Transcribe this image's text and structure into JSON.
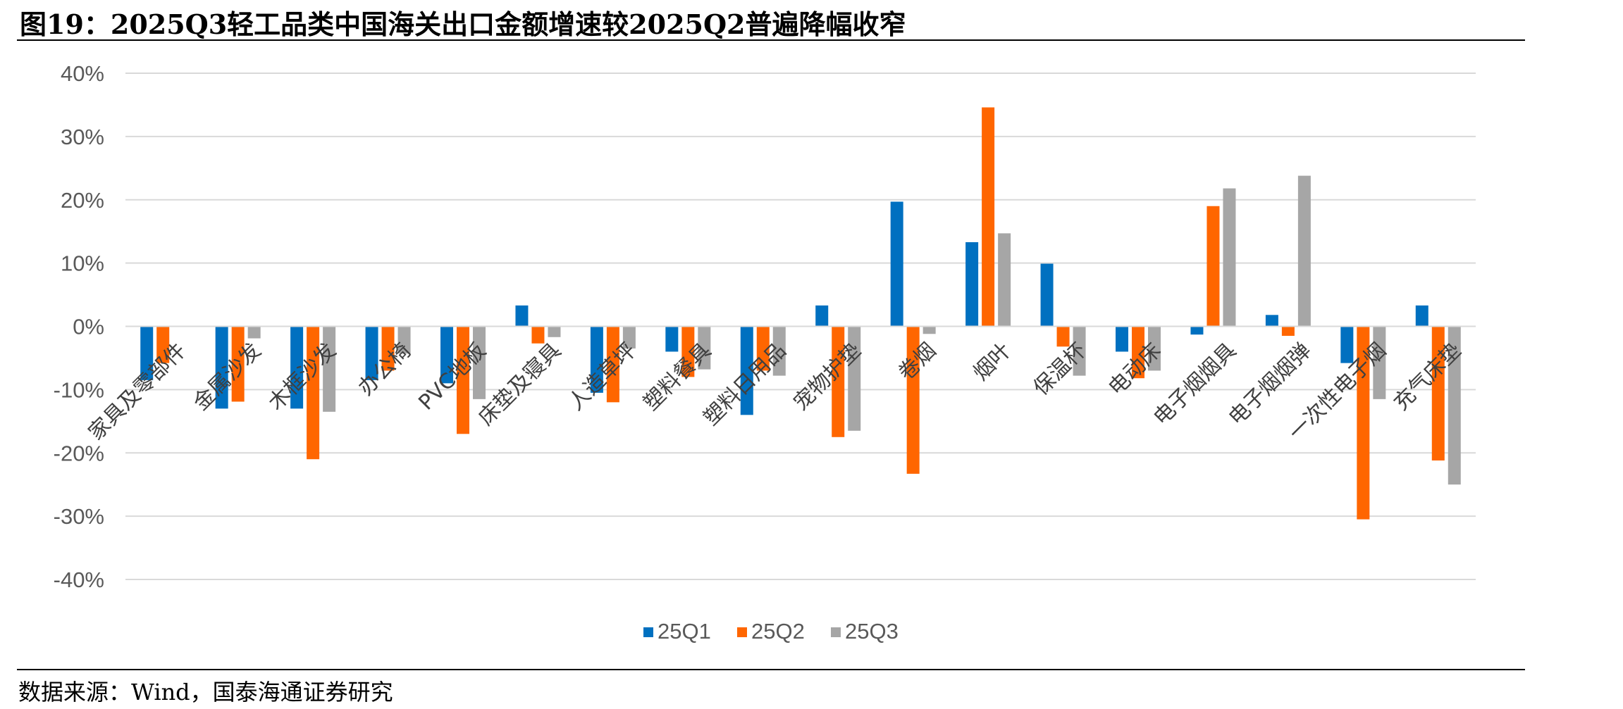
{
  "title": "图19：2025Q3轻工品类中国海关出口金额增速较2025Q2普遍降幅收窄",
  "source": "数据来源：Wind，国泰海通证券研究",
  "colors": {
    "25Q1": "#0070C0",
    "25Q2": "#FF6600",
    "25Q3": "#A6A6A6",
    "grid": "#D9D9D9"
  },
  "chart_data": {
    "type": "bar",
    "title": "图19：2025Q3轻工品类中国海关出口金额增速较2025Q2普遍降幅收窄",
    "xlabel": "",
    "ylabel": "",
    "ylim": [
      -40,
      40
    ],
    "yticks": [
      "40%",
      "30%",
      "20%",
      "10%",
      "0%",
      "-10%",
      "-20%",
      "-30%",
      "-40%"
    ],
    "yticks_values": [
      40,
      30,
      20,
      10,
      0,
      -10,
      -20,
      -30,
      -40
    ],
    "grid": true,
    "legend": "bottom",
    "categories": [
      "家具及零部件",
      "金属沙发",
      "木框沙发",
      "办公椅",
      "PVC地板",
      "床垫及寝具",
      "人造草坪",
      "塑料餐具",
      "塑料日用品",
      "宠物护垫",
      "卷烟",
      "烟叶",
      "保温杯",
      "电动床",
      "电子烟烟具",
      "电子烟烟弹",
      "一次性电子烟",
      "充气床垫"
    ],
    "series": [
      {
        "name": "25Q1",
        "values": [
          -8.5,
          -13,
          -13,
          -8.5,
          -9,
          3.3,
          -10.5,
          -4,
          -14,
          3.3,
          19.7,
          13.3,
          9.9,
          -4,
          -1.3,
          1.8,
          -5.8,
          3.3
        ]
      },
      {
        "name": "25Q2",
        "values": [
          -5.8,
          -11.9,
          -21,
          -7,
          -17,
          -2.7,
          -12,
          -8,
          -7,
          -17.5,
          -23.3,
          34.6,
          -3.2,
          -8.2,
          19,
          -1.5,
          -30.5,
          -21.2
        ]
      },
      {
        "name": "25Q3",
        "values": [
          null,
          -1.9,
          -13.5,
          -4.3,
          -11.5,
          -1.7,
          -3.5,
          -6.8,
          -7.8,
          -16.5,
          -1.2,
          14.7,
          -7.8,
          -7,
          21.8,
          23.8,
          -11.5,
          -25
        ]
      }
    ]
  }
}
